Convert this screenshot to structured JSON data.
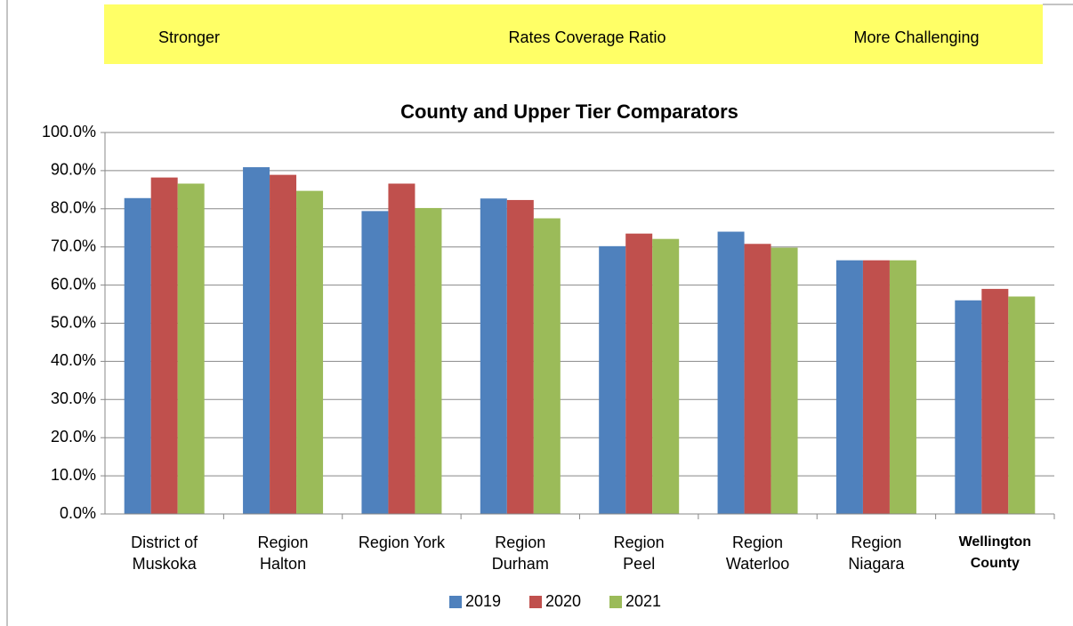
{
  "chart_data": {
    "type": "bar",
    "banner": {
      "left": "Stronger",
      "center": "Rates Coverage Ratio",
      "right": "More Challenging",
      "color": "#ffff66"
    },
    "title": "County and Upper Tier Comparators",
    "categories": [
      "District of\nMuskoka",
      "Region\nHalton",
      "Region York",
      "Region\nDurham",
      "Region\nPeel",
      "Region\nWaterloo",
      "Region\nNiagara",
      "Wellington\nCounty"
    ],
    "series": [
      {
        "name": "2019",
        "color": "#4f81bd",
        "values": [
          82.8,
          90.9,
          79.4,
          82.7,
          70.2,
          74.0,
          66.5,
          56.0
        ]
      },
      {
        "name": "2020",
        "color": "#c0504d",
        "values": [
          88.2,
          88.9,
          86.6,
          82.3,
          73.5,
          70.8,
          66.5,
          59.0
        ]
      },
      {
        "name": "2021",
        "color": "#9bbb59",
        "values": [
          86.6,
          84.7,
          80.2,
          77.5,
          72.1,
          69.8,
          66.5,
          57.0
        ]
      }
    ],
    "ylim": [
      0,
      100
    ],
    "yticks": [
      {
        "value": 0,
        "label": "0.0%"
      },
      {
        "value": 10,
        "label": "10.0%"
      },
      {
        "value": 20,
        "label": "20.0%"
      },
      {
        "value": 30,
        "label": "30.0%"
      },
      {
        "value": 40,
        "label": "40.0%"
      },
      {
        "value": 50,
        "label": "50.0%"
      },
      {
        "value": 60,
        "label": "60.0%"
      },
      {
        "value": 70,
        "label": "70.0%"
      },
      {
        "value": 80,
        "label": "80.0%"
      },
      {
        "value": 90,
        "label": "90.0%"
      },
      {
        "value": 100,
        "label": "100.0%"
      }
    ],
    "grid": true,
    "legend": "bottom"
  }
}
